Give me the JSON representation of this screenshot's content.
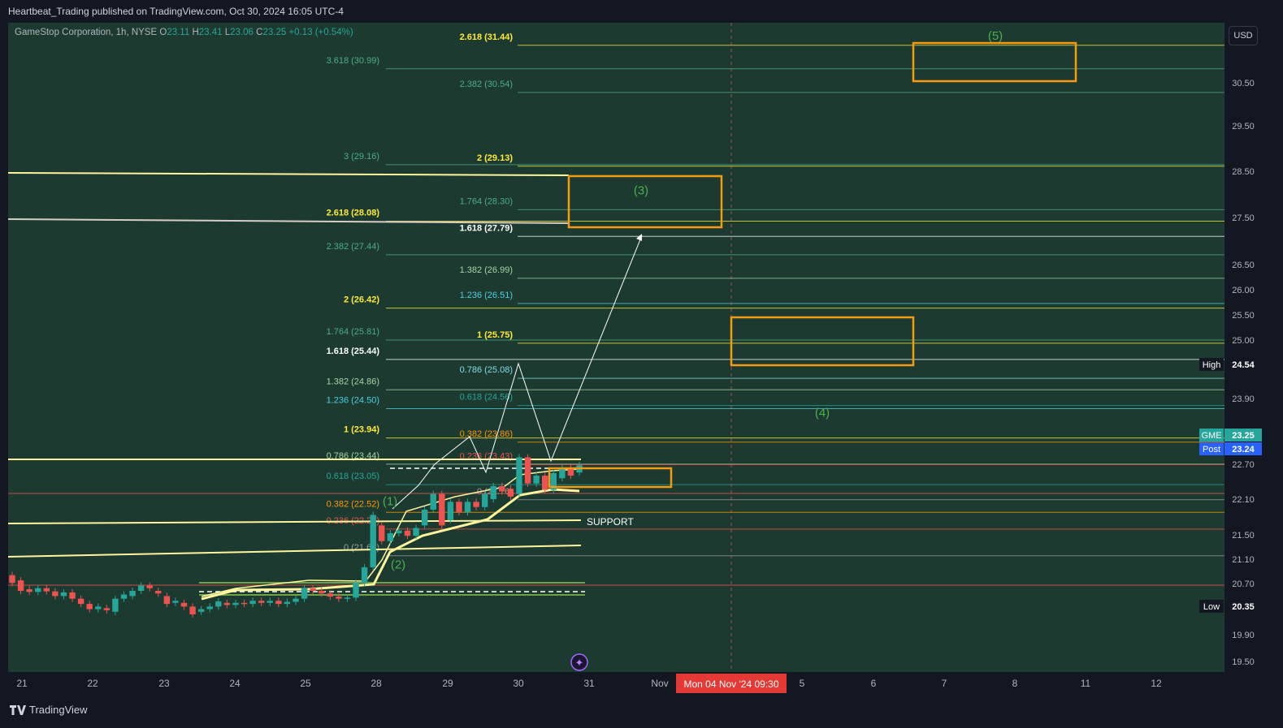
{
  "header": {
    "title": "Heartbeat_Trading published on TradingView.com, Oct 30, 2024 16:05 UTC-4"
  },
  "legend": {
    "symbol": "GameStop Corporation, 1h, NYSE",
    "o_label": "O",
    "o": "23.11",
    "h_label": "H",
    "h": "23.41",
    "l_label": "L",
    "l": "23.06",
    "c_label": "C",
    "c": "23.25",
    "change": "+0.13 (+0.54%)"
  },
  "currency_button": "USD",
  "footer": {
    "brand": "TradingView"
  },
  "colors": {
    "background": "#131722",
    "chart_bg": "#1c3a30",
    "up": "#26a69a",
    "down": "#ef5350",
    "box": "#f59a12",
    "wave_label": "#4caf50"
  },
  "chart_data": {
    "type": "candlestick",
    "symbol": "GME",
    "timeframe": "1h",
    "ylim": [
      19.3,
      31.7
    ],
    "price_ticks": [
      "30.50",
      "29.50",
      "28.50",
      "27.50",
      "26.50",
      "26.00",
      "25.50",
      "25.00",
      "23.90",
      "22.70",
      "22.10",
      "21.50",
      "21.10",
      "20.70",
      "19.90",
      "19.50"
    ],
    "x_ticks": [
      "21",
      "22",
      "23",
      "24",
      "25",
      "28",
      "29",
      "30",
      "31",
      "Nov",
      "5",
      "6",
      "7",
      "8",
      "11",
      "12"
    ],
    "time_marker": "Mon 04 Nov '24   09:30",
    "badges": [
      {
        "label": "High",
        "value": "24.54",
        "price": 24.54
      },
      {
        "label": "GME",
        "value": "23.25",
        "price": 23.25
      },
      {
        "label": "Post",
        "value": "23.24",
        "price": 23.24
      },
      {
        "label": "Low",
        "value": "20.35",
        "price": 20.35
      }
    ],
    "candles": [
      {
        "o": 21.15,
        "c": 21.0
      },
      {
        "o": 21.05,
        "c": 20.85
      },
      {
        "o": 20.88,
        "c": 20.83
      },
      {
        "o": 20.83,
        "c": 20.9
      },
      {
        "o": 20.9,
        "c": 20.84
      },
      {
        "o": 20.84,
        "c": 20.75
      },
      {
        "o": 20.75,
        "c": 20.82
      },
      {
        "o": 20.82,
        "c": 20.7
      },
      {
        "o": 20.7,
        "c": 20.6
      },
      {
        "o": 20.6,
        "c": 20.5
      },
      {
        "o": 20.5,
        "c": 20.55
      },
      {
        "o": 20.52,
        "c": 20.48
      },
      {
        "o": 20.45,
        "c": 20.7
      },
      {
        "o": 20.7,
        "c": 20.78
      },
      {
        "o": 20.75,
        "c": 20.85
      },
      {
        "o": 20.85,
        "c": 20.95
      },
      {
        "o": 20.95,
        "c": 20.9
      },
      {
        "o": 20.85,
        "c": 20.8
      },
      {
        "o": 20.75,
        "c": 20.6
      },
      {
        "o": 20.62,
        "c": 20.66
      },
      {
        "o": 20.62,
        "c": 20.55
      },
      {
        "o": 20.55,
        "c": 20.4
      },
      {
        "o": 20.45,
        "c": 20.5
      },
      {
        "o": 20.5,
        "c": 20.55
      },
      {
        "o": 20.55,
        "c": 20.65
      },
      {
        "o": 20.62,
        "c": 20.58
      },
      {
        "o": 20.58,
        "c": 20.62
      },
      {
        "o": 20.62,
        "c": 20.6
      },
      {
        "o": 20.6,
        "c": 20.66
      },
      {
        "o": 20.66,
        "c": 20.62
      },
      {
        "o": 20.62,
        "c": 20.66
      },
      {
        "o": 20.66,
        "c": 20.6
      },
      {
        "o": 20.6,
        "c": 20.64
      },
      {
        "o": 20.64,
        "c": 20.7
      },
      {
        "o": 20.7,
        "c": 20.9
      },
      {
        "o": 20.9,
        "c": 20.85
      },
      {
        "o": 20.85,
        "c": 20.8
      },
      {
        "o": 20.8,
        "c": 20.74
      },
      {
        "o": 20.74,
        "c": 20.7
      },
      {
        "o": 20.7,
        "c": 20.72
      },
      {
        "o": 20.72,
        "c": 21.0
      },
      {
        "o": 21.0,
        "c": 21.3
      },
      {
        "o": 21.3,
        "c": 22.3
      },
      {
        "o": 22.1,
        "c": 21.8
      },
      {
        "o": 21.8,
        "c": 21.95
      },
      {
        "o": 21.95,
        "c": 22.0
      },
      {
        "o": 22.0,
        "c": 21.9
      },
      {
        "o": 21.9,
        "c": 22.05
      },
      {
        "o": 22.1,
        "c": 22.4
      },
      {
        "o": 22.4,
        "c": 22.7
      },
      {
        "o": 22.7,
        "c": 22.1
      },
      {
        "o": 22.2,
        "c": 22.55
      },
      {
        "o": 22.55,
        "c": 22.35
      },
      {
        "o": 22.35,
        "c": 22.55
      },
      {
        "o": 22.55,
        "c": 22.45
      },
      {
        "o": 22.45,
        "c": 22.7
      },
      {
        "o": 22.6,
        "c": 22.85
      },
      {
        "o": 22.85,
        "c": 22.75
      },
      {
        "o": 22.8,
        "c": 22.65
      },
      {
        "o": 22.7,
        "c": 23.4
      },
      {
        "o": 23.4,
        "c": 22.9
      },
      {
        "o": 22.9,
        "c": 23.05
      },
      {
        "o": 23.05,
        "c": 22.78
      },
      {
        "o": 22.78,
        "c": 23.1
      },
      {
        "o": 23.0,
        "c": 23.2
      },
      {
        "o": 23.2,
        "c": 23.05
      },
      {
        "o": 23.11,
        "c": 23.25
      }
    ],
    "fib_labels": [
      {
        "text": "2.618 (31.44)",
        "price": 31.44,
        "color": "#ffeb3b",
        "bold": true,
        "side": "mid"
      },
      {
        "text": "3.618 (30.99)",
        "price": 30.99,
        "color": "#4caf87",
        "side": "left"
      },
      {
        "text": "2.382 (30.54)",
        "price": 30.54,
        "color": "#4caf87",
        "side": "mid"
      },
      {
        "text": "3 (29.16)",
        "price": 29.16,
        "color": "#4caf87",
        "side": "left"
      },
      {
        "text": "2 (29.13)",
        "price": 29.13,
        "color": "#ffeb3b",
        "bold": true,
        "side": "mid"
      },
      {
        "text": "1.764 (28.30)",
        "price": 28.3,
        "color": "#4caf87",
        "side": "mid"
      },
      {
        "text": "2.618 (28.08)",
        "price": 28.08,
        "color": "#ffeb3b",
        "bold": true,
        "side": "left"
      },
      {
        "text": "1.618 (27.79)",
        "price": 27.79,
        "color": "#ffffff",
        "bold": true,
        "side": "mid"
      },
      {
        "text": "2.382 (27.44)",
        "price": 27.44,
        "color": "#4caf87",
        "side": "left"
      },
      {
        "text": "1.382 (26.99)",
        "price": 26.99,
        "color": "#a5d6a7",
        "side": "mid"
      },
      {
        "text": "1.236 (26.51)",
        "price": 26.51,
        "color": "#4dd0e1",
        "side": "mid"
      },
      {
        "text": "2 (26.42)",
        "price": 26.42,
        "color": "#ffeb3b",
        "bold": true,
        "side": "left"
      },
      {
        "text": "1.764 (25.81)",
        "price": 25.81,
        "color": "#4caf87",
        "side": "left"
      },
      {
        "text": "1 (25.75)",
        "price": 25.75,
        "color": "#ffeb3b",
        "bold": true,
        "side": "mid"
      },
      {
        "text": "1.618 (25.44)",
        "price": 25.44,
        "color": "#ffffff",
        "bold": true,
        "side": "left"
      },
      {
        "text": "0.786 (25.08)",
        "price": 25.08,
        "color": "#80deea",
        "side": "mid"
      },
      {
        "text": "1.382 (24.86)",
        "price": 24.86,
        "color": "#a5d6a7",
        "side": "left"
      },
      {
        "text": "0.618 (24.56)",
        "price": 24.56,
        "color": "#26a69a",
        "side": "mid"
      },
      {
        "text": "1.236 (24.50)",
        "price": 24.5,
        "color": "#4dd0e1",
        "side": "left"
      },
      {
        "text": "1 (23.94)",
        "price": 23.94,
        "color": "#ffeb3b",
        "bold": true,
        "side": "left"
      },
      {
        "text": "0.382 (23.86)",
        "price": 23.86,
        "color": "#ff9800",
        "side": "mid"
      },
      {
        "text": "0.786 (23.44)",
        "price": 23.44,
        "color": "#a5d6a7",
        "side": "left"
      },
      {
        "text": "0.236 (23.43)",
        "price": 23.43,
        "color": "#ef5350",
        "side": "mid"
      },
      {
        "text": "0.618 (23.05)",
        "price": 23.05,
        "color": "#26a69a",
        "side": "left"
      },
      {
        "text": "0 (22.76)",
        "price": 22.76,
        "color": "#9e9e9e",
        "side": "midb"
      },
      {
        "text": "0.382 (22.52)",
        "price": 22.52,
        "color": "#ff9800",
        "side": "left"
      },
      {
        "text": "0.236 (22.20)",
        "price": 22.2,
        "color": "#ef5350",
        "side": "left"
      },
      {
        "text": "0 (21.69)",
        "price": 21.69,
        "color": "#9e9e9e",
        "side": "left"
      }
    ],
    "wave_labels": [
      {
        "text": "(5)",
        "price": 31.45
      },
      {
        "text": "(3)",
        "price": 28.5
      },
      {
        "text": "(4)",
        "price": 24.25
      },
      {
        "text": "(1)",
        "price": 22.56
      },
      {
        "text": "(2)",
        "price": 21.35
      }
    ],
    "annotations": [
      {
        "text": "SUPPORT",
        "price": 22.2
      }
    ]
  }
}
